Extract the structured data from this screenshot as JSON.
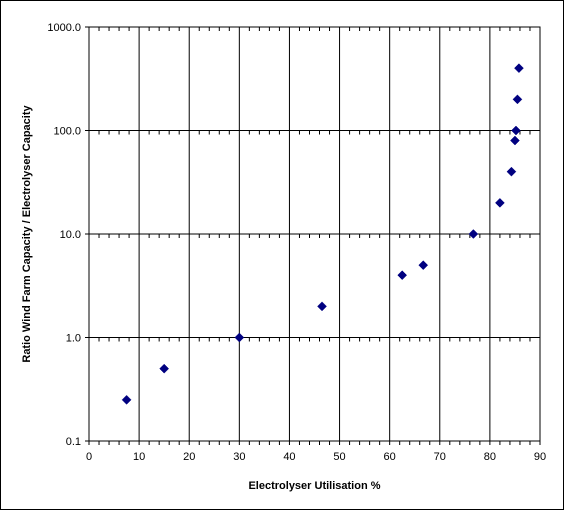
{
  "chart_data": {
    "type": "scatter",
    "xlabel": "Electrolyser Utilisation %",
    "ylabel": "Ratio Wind Farm Capacity / Electrolyser Capacity",
    "xlim": [
      0,
      90
    ],
    "ylim": [
      0.1,
      1000
    ],
    "yscale": "log",
    "grid": true,
    "x_ticks": [
      "0",
      "10",
      "20",
      "30",
      "40",
      "50",
      "60",
      "70",
      "80",
      "90"
    ],
    "y_ticks": [
      "0.1",
      "1.0",
      "10.0",
      "100.0",
      "1000.0"
    ],
    "marker_color": "#000080",
    "marker": "diamond",
    "points": [
      {
        "x": 7.5,
        "y": 0.25
      },
      {
        "x": 15,
        "y": 0.5
      },
      {
        "x": 30,
        "y": 1
      },
      {
        "x": 46.5,
        "y": 2
      },
      {
        "x": 62.5,
        "y": 4
      },
      {
        "x": 66.7,
        "y": 5
      },
      {
        "x": 76.7,
        "y": 10
      },
      {
        "x": 82,
        "y": 20
      },
      {
        "x": 84.3,
        "y": 40
      },
      {
        "x": 85,
        "y": 80
      },
      {
        "x": 85.2,
        "y": 100
      },
      {
        "x": 85.5,
        "y": 200
      },
      {
        "x": 85.8,
        "y": 400
      }
    ]
  }
}
